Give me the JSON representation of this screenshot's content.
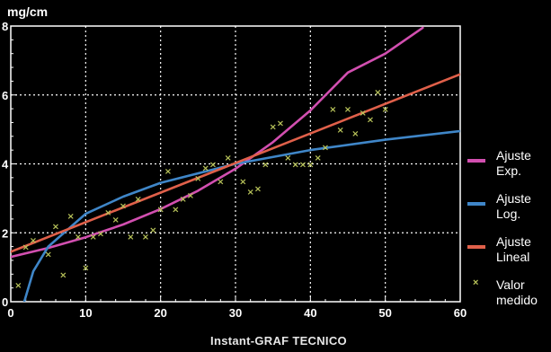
{
  "chart_data": {
    "type": "scatter",
    "title": "",
    "ylabel": "mg/cm",
    "xlabel": "Instant-GRAF TECNICO",
    "xlim": [
      0,
      60
    ],
    "ylim": [
      0,
      8
    ],
    "x_ticks": [
      "0",
      "10",
      "20",
      "30",
      "40",
      "50",
      "60"
    ],
    "y_ticks": [
      "0",
      "2",
      "4",
      "6",
      "8"
    ],
    "grid": true,
    "legend_position": "right",
    "series": [
      {
        "name": "Ajuste Exp.",
        "kind": "line",
        "color": "#d24fb0",
        "x": [
          0,
          5,
          10,
          15,
          20,
          25,
          30,
          35,
          40,
          45,
          50,
          55
        ],
        "y": [
          1.3,
          1.56,
          1.87,
          2.24,
          2.69,
          3.22,
          3.86,
          4.63,
          5.55,
          6.65,
          7.2,
          7.95
        ]
      },
      {
        "name": "Ajuste Log.",
        "kind": "line",
        "color": "#3f86c8",
        "x": [
          1.8,
          3,
          5,
          10,
          15,
          20,
          30,
          40,
          50,
          60
        ],
        "y": [
          0.0,
          0.88,
          1.6,
          2.55,
          3.05,
          3.45,
          4.0,
          4.4,
          4.7,
          4.95
        ]
      },
      {
        "name": "Ajuste Lineal",
        "kind": "line",
        "color": "#e0604a",
        "x": [
          0,
          60
        ],
        "y": [
          1.45,
          6.6
        ]
      },
      {
        "name": "Valor medido",
        "kind": "scatter",
        "color": "#b9c45a",
        "x": [
          1,
          2,
          3,
          5,
          6,
          7,
          8,
          9,
          10,
          11,
          12,
          13,
          14,
          15,
          16,
          17,
          18,
          19,
          20,
          21,
          22,
          23,
          24,
          25,
          26,
          27,
          28,
          29,
          31,
          32,
          33,
          34,
          35,
          36,
          37,
          38,
          39,
          40,
          41,
          42,
          43,
          44,
          45,
          46,
          47,
          48,
          49,
          50
        ],
        "y": [
          0.5,
          1.6,
          1.8,
          1.4,
          2.2,
          0.8,
          2.5,
          1.9,
          1.0,
          1.9,
          2.0,
          2.6,
          2.4,
          2.8,
          1.9,
          3.0,
          1.9,
          2.1,
          2.7,
          3.8,
          2.7,
          3.0,
          3.1,
          3.6,
          3.9,
          4.0,
          3.5,
          4.2,
          3.5,
          3.2,
          3.3,
          4.0,
          5.1,
          5.2,
          4.2,
          4.0,
          4.0,
          4.0,
          4.2,
          4.5,
          5.6,
          5.0,
          5.6,
          4.9,
          5.5,
          5.3,
          6.1,
          5.6
        ]
      }
    ]
  },
  "legend": [
    {
      "line1": "Ajuste",
      "line2": "Exp.",
      "color": "#d24fb0",
      "marker": "line"
    },
    {
      "line1": "Ajuste",
      "line2": "Log.",
      "color": "#3f86c8",
      "marker": "line"
    },
    {
      "line1": "Ajuste",
      "line2": "Lineal",
      "color": "#e0604a",
      "marker": "line"
    },
    {
      "line1": "Valor",
      "line2": "medido",
      "color": "#b9c45a",
      "marker": "x"
    }
  ]
}
